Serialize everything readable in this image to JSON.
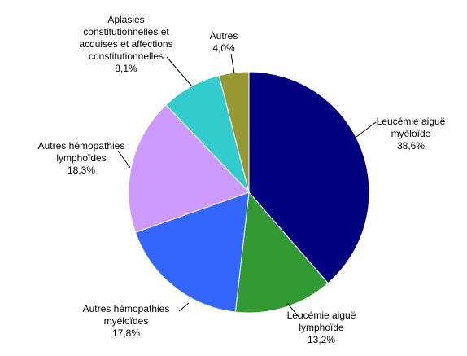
{
  "chart_data": {
    "type": "pie",
    "categories": [
      [
        "Leucémie aiguë",
        "myéloïde"
      ],
      [
        "Leucémie aiguë",
        "lymphoïde"
      ],
      [
        "Autres hémopathies",
        "myéloïdes"
      ],
      [
        "Autres hémopathies",
        "lymphoïdes"
      ],
      [
        "Aplasies",
        "constitutionnelles et",
        "acquises et affections",
        "constitutionnelles"
      ],
      [
        "Autres"
      ]
    ],
    "values": [
      38.6,
      13.2,
      17.8,
      18.3,
      8.1,
      4.0
    ],
    "value_labels": [
      "38,6%",
      "13,2%",
      "17,8%",
      "18,3%",
      "8,1%",
      "4,0%"
    ],
    "colors": [
      "#000080",
      "#339933",
      "#3366ff",
      "#cc99ff",
      "#33cccc",
      "#999933"
    ]
  }
}
